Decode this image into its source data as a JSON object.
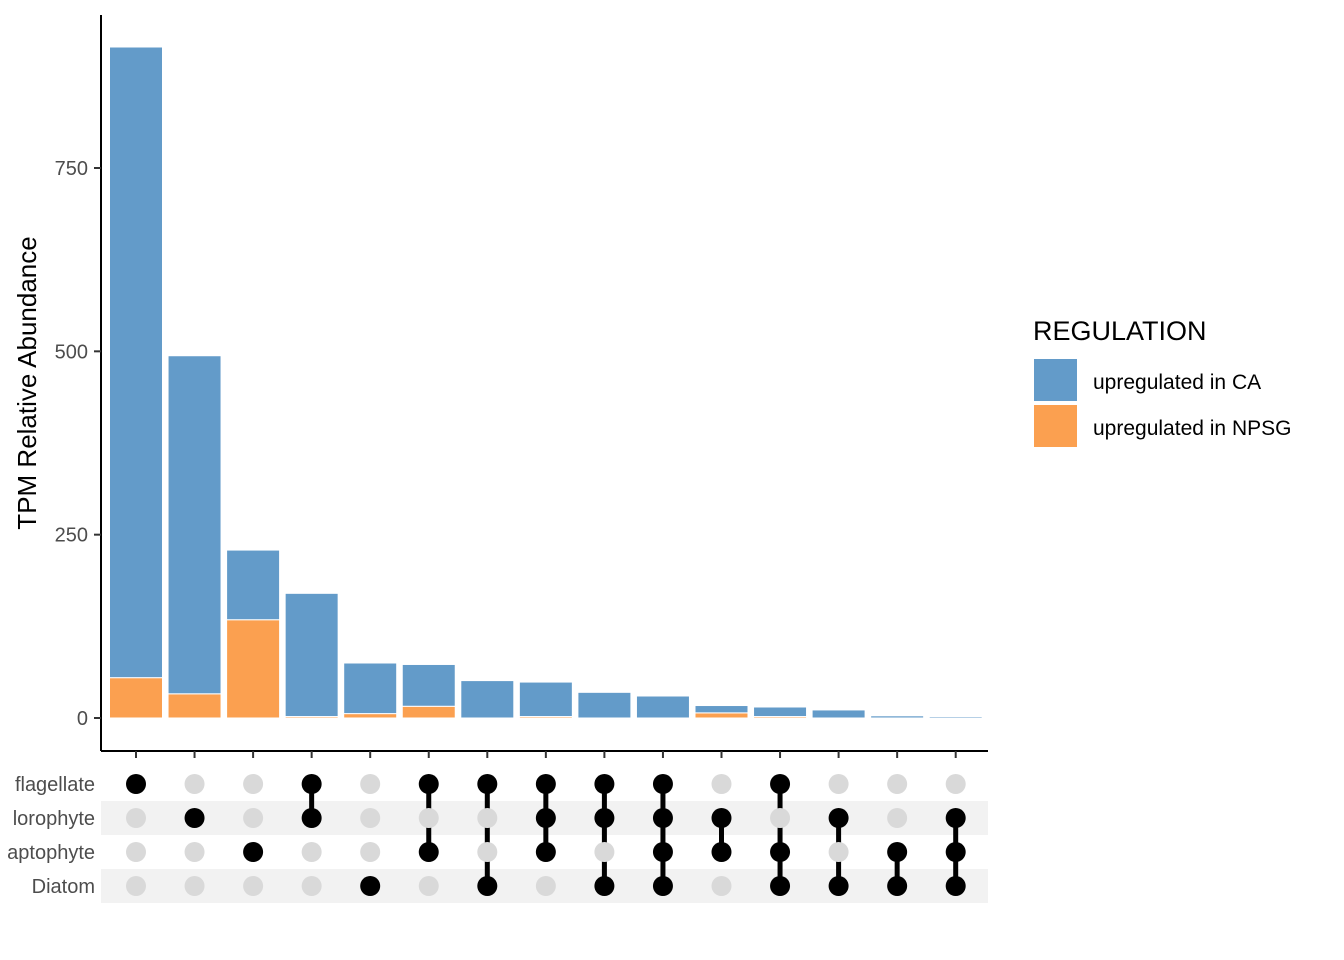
{
  "chart_data": {
    "type": "bar",
    "subtype": "upset-stacked",
    "ylabel": "TPM Relative Abundance",
    "ylim": [
      0,
      925
    ],
    "y_ticks": [
      0,
      250,
      500,
      750
    ],
    "legend": {
      "title": "REGULATION",
      "placement": "right",
      "entries": [
        "upregulated in CA",
        "upregulated in NPSG"
      ]
    },
    "colors": {
      "upregulated in CA": "#639bc9",
      "upregulated in NPSG": "#fba050",
      "dot_active": "#000000",
      "dot_inactive": "#d9d9d9",
      "stripe": "#f2f2f2"
    },
    "sets": [
      "Dinoflagellate",
      "Chlorophyte",
      "Haptophyte",
      "Diatom"
    ],
    "set_labels_visible": [
      "flagellate",
      "lorophyte",
      "aptophyte",
      "Diatom"
    ],
    "intersections": [
      [
        "Dinoflagellate"
      ],
      [
        "Chlorophyte"
      ],
      [
        "Haptophyte"
      ],
      [
        "Dinoflagellate",
        "Chlorophyte"
      ],
      [
        "Diatom"
      ],
      [
        "Dinoflagellate",
        "Haptophyte"
      ],
      [
        "Dinoflagellate",
        "Diatom"
      ],
      [
        "Dinoflagellate",
        "Chlorophyte",
        "Haptophyte"
      ],
      [
        "Dinoflagellate",
        "Chlorophyte",
        "Diatom"
      ],
      [
        "Dinoflagellate",
        "Chlorophyte",
        "Haptophyte",
        "Diatom"
      ],
      [
        "Chlorophyte",
        "Haptophyte"
      ],
      [
        "Dinoflagellate",
        "Haptophyte",
        "Diatom"
      ],
      [
        "Chlorophyte",
        "Diatom"
      ],
      [
        "Haptophyte",
        "Diatom"
      ],
      [
        "Chlorophyte",
        "Haptophyte",
        "Diatom"
      ]
    ],
    "series": [
      {
        "name": "upregulated in NPSG",
        "values": [
          55,
          33,
          134,
          2,
          6,
          16,
          0,
          2,
          0,
          0,
          7,
          2,
          0,
          0,
          0
        ]
      },
      {
        "name": "upregulated in CA",
        "values": [
          860,
          461,
          95,
          168,
          69,
          57,
          51,
          47,
          35,
          30,
          10,
          13,
          11,
          3,
          2
        ]
      }
    ],
    "grid": false
  }
}
